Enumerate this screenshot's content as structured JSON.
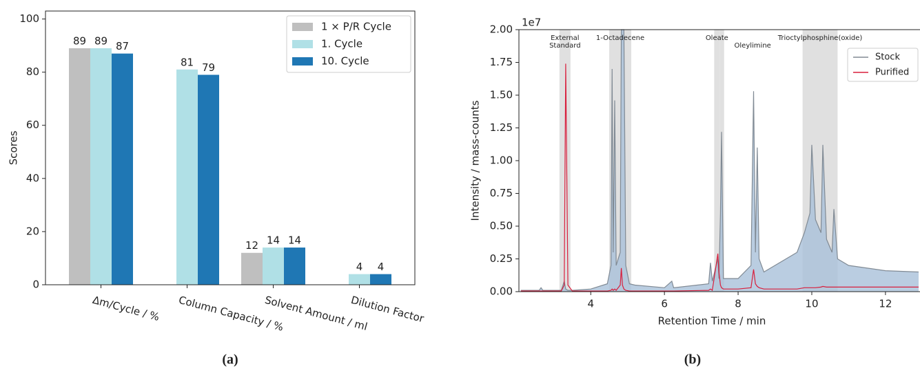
{
  "chart_data": [
    {
      "type": "bar",
      "panel_label": "(a)",
      "ylabel": "Scores",
      "categories": [
        "Δm/Cycle / %",
        "Column Capacity / %",
        "Solvent Amount / ml",
        "Dilution Factor"
      ],
      "series": [
        {
          "name": "1 × P/R Cycle",
          "color": "#bfbfbf",
          "values": [
            89,
            null,
            12,
            null
          ]
        },
        {
          "name": "1. Cycle",
          "color": "#b0e0e6",
          "values": [
            89,
            81,
            14,
            4
          ]
        },
        {
          "name": "10. Cycle",
          "color": "#1f77b4",
          "values": [
            87,
            79,
            14,
            4
          ]
        }
      ],
      "ylim": [
        0,
        103
      ],
      "yticks": [
        0,
        20,
        40,
        60,
        80,
        100
      ],
      "legend": "upper right"
    },
    {
      "type": "line",
      "panel_label": "(b)",
      "xlabel": "Retention Time / min",
      "ylabel": "Intensity / mass-counts",
      "y_offset_text": "1e7",
      "x": [
        2.1,
        2.6,
        2.65,
        2.7,
        3.2,
        3.28,
        3.32,
        3.38,
        3.5,
        4.0,
        4.45,
        4.55,
        4.58,
        4.61,
        4.65,
        4.69,
        4.8,
        4.83,
        4.86,
        4.9,
        4.95,
        5.05,
        5.2,
        6.0,
        6.2,
        6.25,
        7.2,
        7.25,
        7.3,
        7.45,
        7.48,
        7.52,
        7.55,
        7.6,
        8.0,
        8.35,
        8.42,
        8.47,
        8.52,
        8.57,
        8.7,
        9.0,
        9.3,
        9.6,
        9.8,
        9.95,
        10.0,
        10.1,
        10.25,
        10.3,
        10.4,
        10.55,
        10.6,
        10.7,
        11.0,
        12.0,
        12.9
      ],
      "series": [
        {
          "name": "Stock",
          "color": "#808a94",
          "fill": "#a9c1d9",
          "values": [
            0.01,
            0.01,
            0.03,
            0.01,
            0.01,
            0.08,
            0.02,
            0.01,
            0.01,
            0.02,
            0.06,
            0.2,
            1.7,
            0.3,
            1.46,
            0.2,
            0.3,
            2.0,
            2.0,
            2.0,
            0.2,
            0.06,
            0.05,
            0.03,
            0.08,
            0.03,
            0.06,
            0.22,
            0.08,
            0.25,
            0.1,
            0.6,
            1.22,
            0.1,
            0.1,
            0.2,
            1.53,
            0.3,
            1.1,
            0.25,
            0.15,
            0.2,
            0.25,
            0.3,
            0.45,
            0.6,
            1.12,
            0.55,
            0.45,
            1.12,
            0.4,
            0.3,
            0.63,
            0.25,
            0.2,
            0.16,
            0.15
          ]
        },
        {
          "name": "Purified",
          "color": "#d81e3c",
          "values": [
            0.005,
            0.005,
            0.005,
            0.005,
            0.005,
            0.05,
            1.74,
            0.05,
            0.005,
            0.005,
            0.005,
            0.01,
            0.02,
            0.01,
            0.02,
            0.01,
            0.05,
            0.18,
            0.05,
            0.02,
            0.01,
            0.005,
            0.005,
            0.005,
            0.005,
            0.005,
            0.01,
            0.02,
            0.01,
            0.29,
            0.15,
            0.05,
            0.03,
            0.02,
            0.02,
            0.03,
            0.17,
            0.06,
            0.04,
            0.03,
            0.02,
            0.02,
            0.02,
            0.02,
            0.03,
            0.03,
            0.03,
            0.03,
            0.035,
            0.04,
            0.035,
            0.035,
            0.035,
            0.035,
            0.035,
            0.035,
            0.035
          ]
        }
      ],
      "regions": [
        {
          "label": [
            "External",
            "Standard"
          ],
          "x": [
            3.15,
            3.45
          ]
        },
        {
          "label": [
            "1-Octadecene"
          ],
          "x": [
            4.5,
            5.1
          ]
        },
        {
          "label": [
            "Oleate"
          ],
          "x": [
            7.35,
            7.5
          ]
        },
        {
          "label": [
            "Oleylimine"
          ],
          "x": [
            7.5,
            7.62
          ]
        },
        {
          "label": [
            "Trioctylphosphine(oxide)"
          ],
          "x": [
            9.75,
            10.7
          ]
        }
      ],
      "xlim": [
        2.05,
        12.9
      ],
      "xticks": [
        4,
        6,
        8,
        10,
        12
      ],
      "ylim": [
        0,
        2.0
      ],
      "yticks": [
        {
          "value": 0,
          "label": "0.00"
        },
        {
          "value": 0.25,
          "label": "0.25"
        },
        {
          "value": 0.5,
          "label": "0.50"
        },
        {
          "value": 0.75,
          "label": "0.75"
        },
        {
          "value": 1.0,
          "label": "1.00"
        },
        {
          "value": 1.25,
          "label": "1.25"
        },
        {
          "value": 1.5,
          "label": "1.50"
        },
        {
          "value": 1.75,
          "label": "1.75"
        },
        {
          "value": 2.0,
          "label": "2.00"
        }
      ],
      "legend": "upper right"
    }
  ]
}
